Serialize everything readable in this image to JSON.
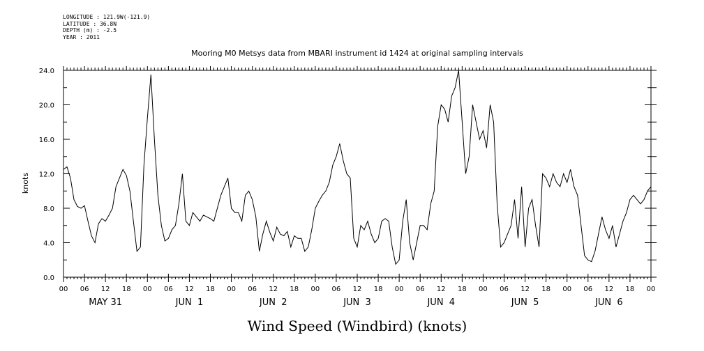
{
  "metadata": {
    "longitude": "LONGITUDE : 121.9W(-121.9)",
    "latitude": "LATITUDE : 36.8N",
    "depth": "DEPTH (m) : -2.5",
    "year": "YEAR : 2011"
  },
  "chart_data": {
    "type": "line",
    "title": "Mooring M0 Metsys data from MBARI instrument id 1424 at original sampling intervals",
    "xlabel": "Wind Speed (Windbird) (knots)",
    "ylabel": "knots",
    "ylim": [
      0,
      24
    ],
    "xlim_hours": [
      0,
      168
    ],
    "x_units": "hours from 00 May 31 2011",
    "yticks": [
      "0.0",
      "4.0",
      "8.0",
      "12.0",
      "16.0",
      "20.0",
      "24.0"
    ],
    "hour_tick_labels": [
      "00",
      "06",
      "12",
      "18",
      "00",
      "06",
      "12",
      "18",
      "00",
      "06",
      "12",
      "18",
      "00",
      "06",
      "12",
      "18",
      "00",
      "06",
      "12",
      "18",
      "00",
      "06",
      "12",
      "18",
      "00",
      "06",
      "12",
      "18",
      "00"
    ],
    "day_labels": [
      "MAY 31",
      "JUN  1",
      "JUN  2",
      "JUN  3",
      "JUN  4",
      "JUN  5",
      "JUN  6"
    ],
    "grid": false,
    "series": [
      {
        "color": "#000000",
        "x": [
          0,
          1,
          2,
          3,
          4,
          5,
          6,
          7,
          8,
          9,
          10,
          11,
          12,
          13,
          14,
          15,
          16,
          17,
          18,
          19,
          20,
          21,
          22,
          23,
          24,
          25,
          26,
          27,
          28,
          29,
          30,
          31,
          32,
          33,
          34,
          35,
          36,
          37,
          38,
          39,
          40,
          41,
          42,
          43,
          44,
          45,
          46,
          47,
          48,
          49,
          50,
          51,
          52,
          53,
          54,
          55,
          56,
          57,
          58,
          59,
          60,
          61,
          62,
          63,
          64,
          65,
          66,
          67,
          68,
          69,
          70,
          71,
          72,
          73,
          74,
          75,
          76,
          77,
          78,
          79,
          80,
          81,
          82,
          83,
          84,
          85,
          86,
          87,
          88,
          89,
          90,
          91,
          92,
          93,
          94,
          95,
          96,
          97,
          98,
          99,
          100,
          101,
          102,
          103,
          104,
          105,
          106,
          107,
          108,
          109,
          110,
          111,
          112,
          113,
          114,
          115,
          116,
          117,
          118,
          119,
          120,
          121,
          122,
          123,
          124,
          125,
          126,
          127,
          128,
          129,
          130,
          131,
          132,
          133,
          134,
          135,
          136,
          137,
          138,
          139,
          140,
          141,
          142,
          143,
          144,
          145,
          146,
          147,
          148,
          149,
          150,
          151,
          152,
          153,
          154,
          155,
          156,
          157,
          158,
          159,
          160,
          161,
          162,
          163,
          164,
          165,
          166,
          167,
          168
        ],
        "y": [
          12.5,
          12.8,
          11.5,
          9.0,
          8.2,
          8.0,
          8.3,
          6.5,
          4.8,
          4.0,
          6.2,
          6.8,
          6.5,
          7.2,
          8.0,
          10.5,
          11.5,
          12.5,
          11.8,
          10.0,
          6.5,
          3.0,
          3.5,
          13.0,
          18.5,
          23.5,
          16.0,
          9.5,
          6.0,
          4.2,
          4.5,
          5.5,
          6.0,
          8.5,
          12.0,
          6.5,
          6.0,
          7.5,
          7.0,
          6.5,
          7.2,
          7.0,
          6.8,
          6.5,
          8.0,
          9.5,
          10.5,
          11.5,
          8.0,
          7.5,
          7.5,
          6.5,
          9.5,
          10.0,
          9.0,
          7.0,
          3.0,
          5.0,
          6.5,
          5.2,
          4.2,
          5.8,
          5.0,
          4.8,
          5.3,
          3.5,
          4.8,
          4.5,
          4.5,
          3.0,
          3.5,
          5.5,
          8.0,
          8.8,
          9.5,
          10.0,
          11.0,
          13.0,
          14.0,
          15.5,
          13.5,
          12.0,
          11.5,
          4.5,
          3.5,
          6.0,
          5.5,
          6.5,
          5.0,
          4.0,
          4.5,
          6.5,
          6.8,
          6.5,
          3.5,
          1.5,
          2.0,
          6.5,
          9.0,
          4.0,
          2.0,
          4.0,
          6.0,
          6.0,
          5.5,
          8.5,
          10.0,
          17.5,
          20.0,
          19.5,
          18.0,
          21.0,
          22.0,
          24.0,
          18.0,
          12.0,
          14.0,
          20.0,
          18.0,
          16.0,
          17.0,
          15.0,
          20.0,
          18.0,
          8.5,
          3.5,
          4.0,
          5.0,
          6.0,
          9.0,
          4.5,
          10.5,
          3.5,
          8.0,
          9.0,
          6.0,
          3.5,
          12.0,
          11.5,
          10.5,
          12.0,
          11.0,
          10.5,
          12.0,
          11.0,
          12.5,
          10.5,
          9.5,
          6.0,
          2.5,
          2.0,
          1.8,
          3.0,
          5.0,
          7.0,
          5.5,
          4.5,
          6.0,
          3.5,
          5.0,
          6.5,
          7.5,
          9.0,
          9.5,
          9.0,
          8.5,
          9.0,
          10.0,
          10.5
        ]
      }
    ]
  }
}
